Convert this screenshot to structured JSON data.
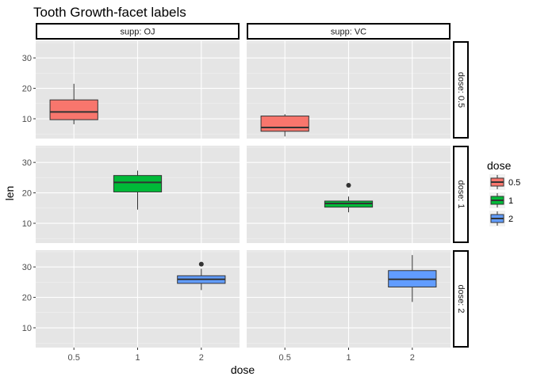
{
  "chart_data": {
    "type": "box",
    "title": "Tooth Growth-facet labels",
    "xlabel": "dose",
    "ylabel": "len",
    "x_categories": [
      "0.5",
      "1",
      "2"
    ],
    "y_ticks": [
      10,
      20,
      30
    ],
    "ylim": [
      3.5,
      35.5
    ],
    "grid": true,
    "facet_cols": [
      "supp: OJ",
      "supp: VC"
    ],
    "facet_rows": [
      "dose: 0.5",
      "dose: 1",
      "dose: 2"
    ],
    "legend": {
      "title": "dose",
      "position": "right",
      "items": [
        {
          "label": "0.5",
          "color": "#F8766D"
        },
        {
          "label": "1",
          "color": "#00BA38"
        },
        {
          "label": "2",
          "color": "#619CFF"
        }
      ]
    },
    "boxes": [
      {
        "row": 0,
        "col": 0,
        "x": "0.5",
        "fill": "#F8766D",
        "min": 8.2,
        "q1": 9.7,
        "median": 12.25,
        "q3": 16.2,
        "max": 21.5,
        "outliers": []
      },
      {
        "row": 0,
        "col": 1,
        "x": "0.5",
        "fill": "#F8766D",
        "min": 4.2,
        "q1": 5.9,
        "median": 7.15,
        "q3": 10.9,
        "max": 11.5,
        "outliers": []
      },
      {
        "row": 1,
        "col": 0,
        "x": "1",
        "fill": "#00BA38",
        "min": 14.5,
        "q1": 20.3,
        "median": 23.45,
        "q3": 25.7,
        "max": 27.3,
        "outliers": []
      },
      {
        "row": 1,
        "col": 1,
        "x": "1",
        "fill": "#00BA38",
        "min": 13.6,
        "q1": 15.3,
        "median": 16.5,
        "q3": 17.3,
        "max": 18.8,
        "outliers": [
          22.5
        ]
      },
      {
        "row": 2,
        "col": 0,
        "x": "2",
        "fill": "#619CFF",
        "min": 22.4,
        "q1": 24.6,
        "median": 25.95,
        "q3": 27.1,
        "max": 29.4,
        "outliers": [
          30.9
        ]
      },
      {
        "row": 2,
        "col": 1,
        "x": "2",
        "fill": "#619CFF",
        "min": 18.5,
        "q1": 23.4,
        "median": 25.95,
        "q3": 28.8,
        "max": 33.9,
        "outliers": []
      }
    ]
  }
}
